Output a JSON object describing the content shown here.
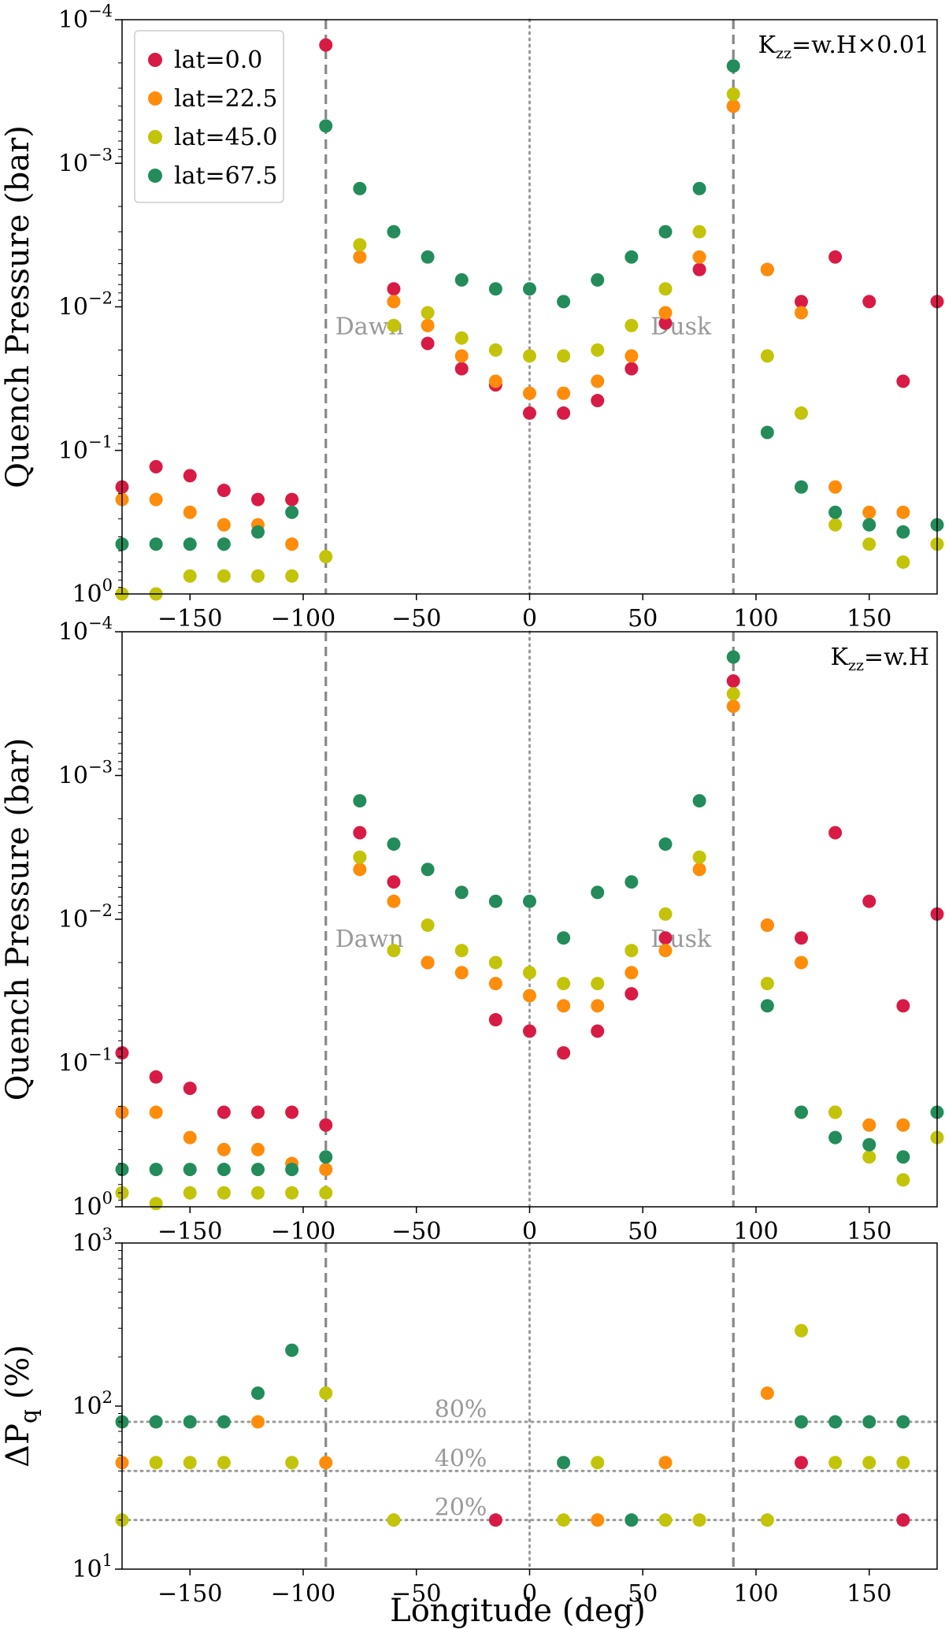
{
  "chart_data": [
    {
      "type": "scatter",
      "ylabel": "Quench Pressure (bar)",
      "xlabel": "",
      "yscale": "log",
      "y_inverted": true,
      "xlim": [
        -180,
        180
      ],
      "ylim": [
        1,
        0.0001
      ],
      "xticks": [
        -150,
        -100,
        -50,
        0,
        50,
        100,
        150
      ],
      "xtick_labels": [
        "−150",
        "−100",
        "−50",
        "0",
        "50",
        "100",
        "150"
      ],
      "yticks": [
        {
          "base": "10",
          "exp": "0",
          "value": 1
        },
        {
          "base": "10",
          "exp": "−1",
          "value": 0.1
        },
        {
          "base": "10",
          "exp": "−2",
          "value": 0.01
        },
        {
          "base": "10",
          "exp": "−3",
          "value": 0.001
        },
        {
          "base": "10",
          "exp": "−4",
          "value": 0.0001
        }
      ],
      "annotation": {
        "prefix": "K",
        "sub": "zz",
        "suffix": "=w.H×0.01"
      },
      "vlines": [
        {
          "x": -90,
          "style": "dashed",
          "label": "Dawn"
        },
        {
          "x": 0,
          "style": "dotted"
        },
        {
          "x": 90,
          "style": "dashed",
          "label": "Dusk"
        }
      ],
      "legend": {
        "placement": "top-left"
      },
      "series": [
        {
          "name": "lat=0.0",
          "color": "#d81b45",
          "x": [
            -180,
            -165,
            -150,
            -135,
            -120,
            -105,
            -90,
            -60,
            -45,
            -30,
            -15,
            0,
            15,
            30,
            45,
            60,
            75,
            90,
            105,
            120,
            135,
            150,
            165,
            180
          ],
          "y": [
            0.18,
            0.13,
            0.15,
            0.19,
            0.22,
            0.22,
            0.00015,
            0.0075,
            0.018,
            0.027,
            0.035,
            0.055,
            0.055,
            0.045,
            0.027,
            0.013,
            0.0055,
            0.0004,
            0.0055,
            0.0092,
            0.0045,
            0.0092,
            0.033,
            0.0092
          ]
        },
        {
          "name": "lat=22.5",
          "color": "#ff8c0a",
          "x": [
            -180,
            -165,
            -150,
            -135,
            -120,
            -105,
            -75,
            -60,
            -45,
            -30,
            -15,
            0,
            15,
            30,
            45,
            60,
            75,
            90,
            105,
            120,
            135,
            150,
            165
          ],
          "y": [
            0.22,
            0.22,
            0.27,
            0.33,
            0.33,
            0.45,
            0.0045,
            0.0092,
            0.0135,
            0.022,
            0.033,
            0.04,
            0.04,
            0.033,
            0.022,
            0.011,
            0.0045,
            0.0004,
            0.0055,
            0.011,
            0.18,
            0.27,
            0.27
          ]
        },
        {
          "name": "lat=45.0",
          "color": "#c3c30a",
          "x": [
            -180,
            -165,
            -150,
            -135,
            -120,
            -105,
            -90,
            -75,
            -60,
            -45,
            -30,
            -15,
            0,
            15,
            30,
            45,
            60,
            75,
            90,
            105,
            120,
            135,
            150,
            165,
            180
          ],
          "y": [
            1.0,
            1.0,
            0.75,
            0.75,
            0.75,
            0.75,
            0.55,
            0.0037,
            0.0135,
            0.011,
            0.0165,
            0.02,
            0.022,
            0.022,
            0.02,
            0.0135,
            0.0075,
            0.003,
            0.00033,
            0.022,
            0.055,
            0.33,
            0.45,
            0.6,
            0.45
          ]
        },
        {
          "name": "lat=67.5",
          "color": "#238c5a",
          "x": [
            -180,
            -165,
            -150,
            -135,
            -120,
            -105,
            -90,
            -75,
            -60,
            -45,
            -30,
            -15,
            0,
            15,
            30,
            45,
            60,
            75,
            90,
            105,
            120,
            135,
            150,
            165,
            180
          ],
          "y": [
            0.45,
            0.45,
            0.45,
            0.45,
            0.37,
            0.27,
            0.00055,
            0.0015,
            0.003,
            0.0045,
            0.0065,
            0.0075,
            0.0075,
            0.0092,
            0.0065,
            0.0045,
            0.003,
            0.0015,
            0.00021,
            0.075,
            0.18,
            0.27,
            0.33,
            0.37,
            0.33
          ]
        }
      ]
    },
    {
      "type": "scatter",
      "ylabel": "Quench Pressure (bar)",
      "xlabel": "",
      "yscale": "log",
      "y_inverted": true,
      "xlim": [
        -180,
        180
      ],
      "ylim": [
        1,
        0.0001
      ],
      "xticks": [
        -150,
        -100,
        -50,
        0,
        50,
        100,
        150
      ],
      "xtick_labels": [
        "−150",
        "−100",
        "−50",
        "0",
        "50",
        "100",
        "150"
      ],
      "yticks": [
        {
          "base": "10",
          "exp": "0",
          "value": 1
        },
        {
          "base": "10",
          "exp": "−1",
          "value": 0.1
        },
        {
          "base": "10",
          "exp": "−2",
          "value": 0.01
        },
        {
          "base": "10",
          "exp": "−3",
          "value": 0.001
        },
        {
          "base": "10",
          "exp": "−4",
          "value": 0.0001
        }
      ],
      "annotation": {
        "prefix": "K",
        "sub": "zz",
        "suffix": "=w.H"
      },
      "vlines": [
        {
          "x": -90,
          "style": "dashed",
          "label": "Dawn"
        },
        {
          "x": 0,
          "style": "dotted"
        },
        {
          "x": 90,
          "style": "dashed",
          "label": "Dusk"
        }
      ],
      "series": [
        {
          "name": "lat=0.0",
          "color": "#d81b45",
          "x": [
            -180,
            -165,
            -150,
            -135,
            -120,
            -105,
            -90,
            -75,
            -60,
            -45,
            -15,
            0,
            15,
            30,
            45,
            60,
            90,
            105,
            120,
            135,
            150,
            165,
            180
          ],
          "y": [
            0.085,
            0.125,
            0.15,
            0.22,
            0.22,
            0.22,
            0.27,
            0.0025,
            0.0055,
            0.02,
            0.05,
            0.06,
            0.085,
            0.06,
            0.033,
            0.0135,
            0.00022,
            0.011,
            0.0135,
            0.0025,
            0.0075,
            0.04,
            0.0092
          ]
        },
        {
          "name": "lat=22.5",
          "color": "#ff8c0a",
          "x": [
            -180,
            -165,
            -150,
            -135,
            -120,
            -105,
            -90,
            -75,
            -60,
            -45,
            -30,
            -15,
            0,
            15,
            30,
            45,
            60,
            75,
            90,
            105,
            120,
            135,
            150,
            165
          ],
          "y": [
            0.22,
            0.22,
            0.33,
            0.4,
            0.4,
            0.5,
            0.55,
            0.0045,
            0.0075,
            0.02,
            0.0235,
            0.028,
            0.034,
            0.04,
            0.04,
            0.0235,
            0.0165,
            0.0045,
            0.00033,
            0.011,
            0.02,
            0.22,
            0.27,
            0.27
          ]
        },
        {
          "name": "lat=45.0",
          "color": "#c3c30a",
          "x": [
            -180,
            -165,
            -150,
            -135,
            -120,
            -105,
            -90,
            -75,
            -60,
            -45,
            -30,
            -15,
            0,
            15,
            30,
            45,
            60,
            75,
            90,
            105,
            120,
            135,
            150,
            165,
            180
          ],
          "y": [
            0.8,
            0.95,
            0.8,
            0.8,
            0.8,
            0.8,
            0.8,
            0.0037,
            0.0165,
            0.011,
            0.0165,
            0.02,
            0.0235,
            0.028,
            0.028,
            0.0165,
            0.0092,
            0.0037,
            0.00027,
            0.028,
            0.22,
            0.22,
            0.45,
            0.65,
            0.33
          ]
        },
        {
          "name": "lat=67.5",
          "color": "#238c5a",
          "x": [
            -180,
            -165,
            -150,
            -135,
            -120,
            -105,
            -90,
            -75,
            -60,
            -45,
            -30,
            -15,
            0,
            15,
            30,
            45,
            60,
            75,
            90,
            105,
            120,
            135,
            150,
            165,
            180
          ],
          "y": [
            0.55,
            0.55,
            0.55,
            0.55,
            0.55,
            0.55,
            0.45,
            0.0015,
            0.003,
            0.0045,
            0.0065,
            0.0075,
            0.0075,
            0.0135,
            0.0065,
            0.0055,
            0.003,
            0.0015,
            0.00015,
            0.04,
            0.22,
            0.33,
            0.37,
            0.45,
            0.22
          ]
        }
      ]
    },
    {
      "type": "scatter",
      "ylabel": {
        "prefix": "ΔP",
        "sub": "q",
        "suffix": " (%)"
      },
      "xlabel": "Longitude (deg)",
      "yscale": "log",
      "xlim": [
        -180,
        180
      ],
      "ylim": [
        10,
        1000
      ],
      "xticks": [
        -150,
        -100,
        -50,
        0,
        50,
        100,
        150
      ],
      "xtick_labels": [
        "−150",
        "−100",
        "−50",
        "0",
        "50",
        "100",
        "150"
      ],
      "yticks": [
        {
          "base": "10",
          "exp": "1",
          "value": 10
        },
        {
          "base": "10",
          "exp": "2",
          "value": 100
        },
        {
          "base": "10",
          "exp": "3",
          "value": 1000
        }
      ],
      "hlines": [
        {
          "y": 80,
          "label": "80%"
        },
        {
          "y": 40,
          "label": "40%"
        },
        {
          "y": 20,
          "label": "20%"
        }
      ],
      "vlines": [
        {
          "x": -90,
          "style": "dashed"
        },
        {
          "x": 0,
          "style": "dotted"
        },
        {
          "x": 90,
          "style": "dashed"
        }
      ],
      "series": [
        {
          "name": "lat=0.0",
          "color": "#d81b45",
          "x": [
            -15,
            120,
            165
          ],
          "y": [
            20,
            45,
            20
          ]
        },
        {
          "name": "lat=22.5",
          "color": "#ff8c0a",
          "x": [
            -180,
            -120,
            -90,
            30,
            60,
            105
          ],
          "y": [
            45,
            80,
            45,
            20,
            45,
            120
          ]
        },
        {
          "name": "lat=45.0",
          "color": "#c3c30a",
          "x": [
            -180,
            -165,
            -150,
            -135,
            -105,
            -90,
            -60,
            15,
            30,
            60,
            75,
            105,
            120,
            135,
            150,
            165
          ],
          "y": [
            20,
            45,
            45,
            45,
            45,
            120,
            20,
            20,
            45,
            20,
            20,
            20,
            290,
            45,
            45,
            45
          ]
        },
        {
          "name": "lat=67.5",
          "color": "#238c5a",
          "x": [
            -180,
            -165,
            -150,
            -135,
            -120,
            -105,
            15,
            45,
            120,
            135,
            150,
            165
          ],
          "y": [
            80,
            80,
            80,
            80,
            120,
            220,
            45,
            20,
            80,
            80,
            80,
            80
          ]
        }
      ]
    }
  ]
}
